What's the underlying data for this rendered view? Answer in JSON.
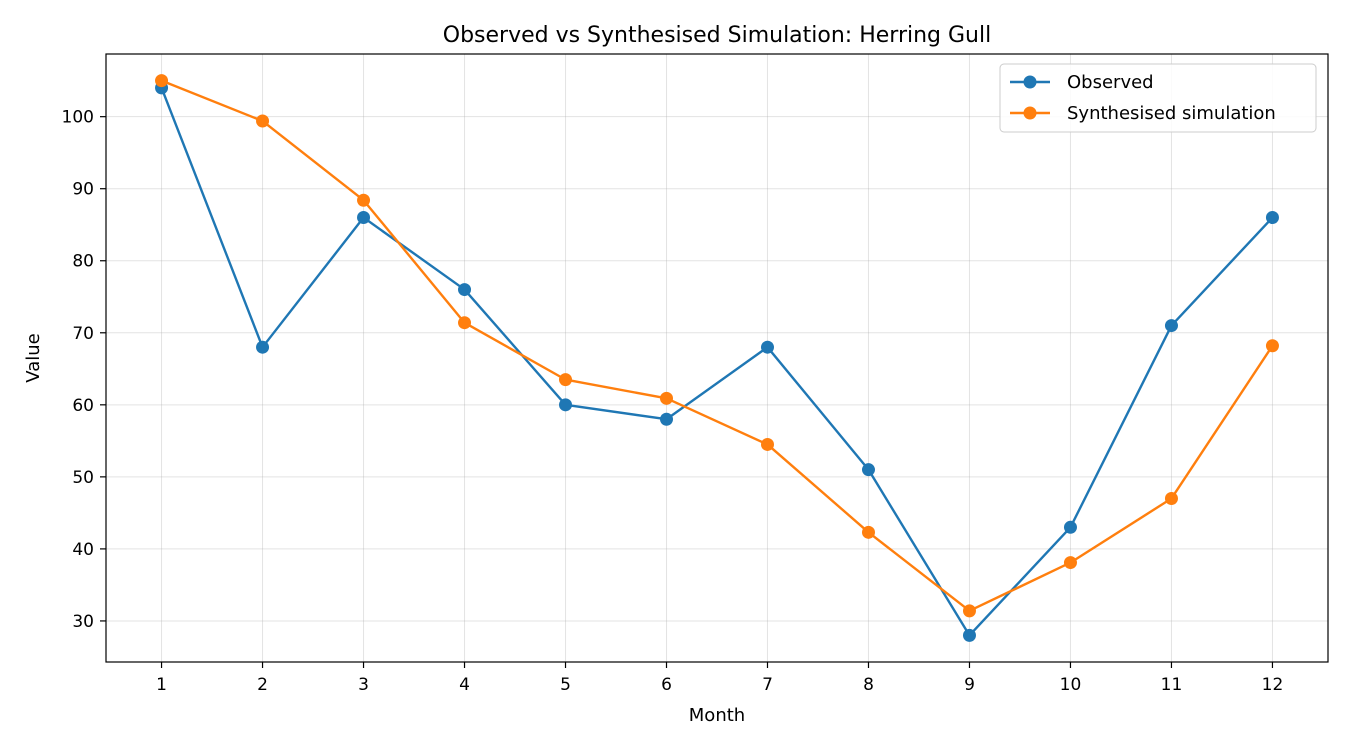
{
  "chart_data": {
    "type": "line",
    "title": "Observed vs Synthesised Simulation: Herring Gull",
    "xlabel": "Month",
    "ylabel": "Value",
    "x": [
      1,
      2,
      3,
      4,
      5,
      6,
      7,
      8,
      9,
      10,
      11,
      12
    ],
    "xlim": [
      0.45,
      12.55
    ],
    "ylim": [
      24.3,
      108.7
    ],
    "yticks": [
      30,
      40,
      50,
      60,
      70,
      80,
      90,
      100
    ],
    "grid": true,
    "legend_position": "top-right",
    "series": [
      {
        "name": "Observed",
        "color": "#1f77b4",
        "values": [
          104,
          68,
          86,
          76,
          60,
          58,
          68,
          51,
          28,
          43,
          71,
          86
        ]
      },
      {
        "name": "Synthesised simulation",
        "color": "#ff7f0e",
        "values": [
          105,
          99.4,
          88.4,
          71.4,
          63.5,
          60.9,
          54.5,
          42.3,
          31.4,
          38.1,
          47.0,
          68.2
        ]
      }
    ]
  }
}
